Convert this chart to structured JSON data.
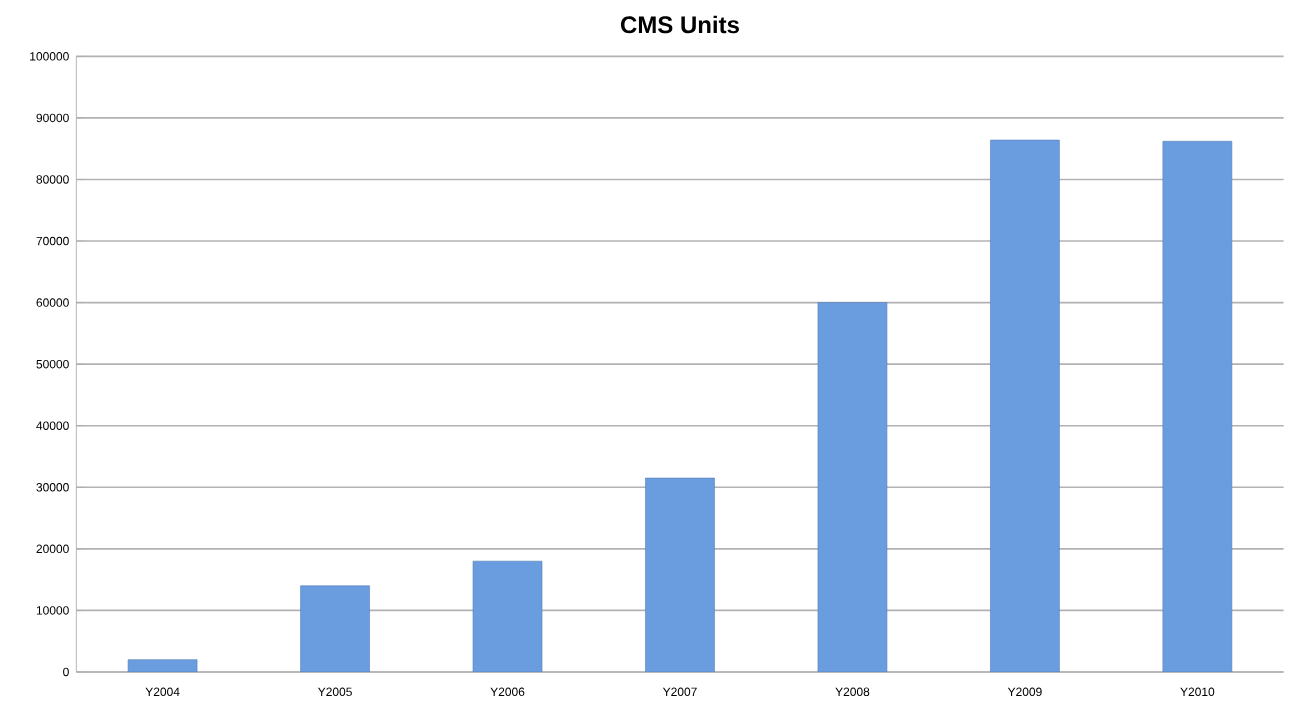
{
  "chart_data": {
    "type": "bar",
    "title": "CMS Units",
    "categories": [
      "Y2004",
      "Y2005",
      "Y2006",
      "Y2007",
      "Y2008",
      "Y2009",
      "Y2010"
    ],
    "values": [
      2000,
      14000,
      18000,
      31500,
      60000,
      86400,
      86200
    ],
    "color": "#6a9de0",
    "ylim": [
      0,
      100000
    ],
    "yticks": [
      0,
      10000,
      20000,
      30000,
      40000,
      50000,
      60000,
      70000,
      80000,
      90000,
      100000
    ],
    "grid": "y"
  }
}
